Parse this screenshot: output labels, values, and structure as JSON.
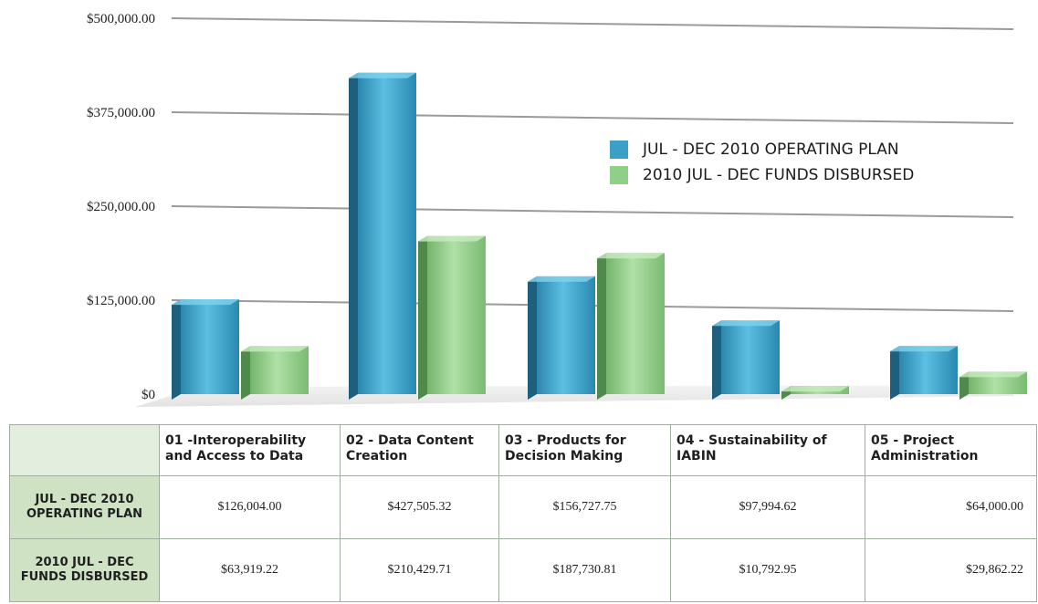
{
  "chart_data": {
    "type": "bar",
    "categories": [
      "01 -Interoperability and Access to Data",
      "02 - Data Content Creation",
      "03 - Products for Decision Making",
      "04 - Sustainability of IABIN",
      "05 - Project Administration"
    ],
    "series": [
      {
        "name": "JUL - DEC 2010 OPERATING PLAN",
        "row_label": "JUL - DEC 2010 OPERATING PLAN",
        "values": [
          126004.0,
          427505.32,
          156727.75,
          97994.62,
          64000.0
        ],
        "display_values": [
          "$126,004.00",
          "$427,505.32",
          "$156,727.75",
          "$97,994.62",
          "$64,000.00"
        ],
        "color": "#3aa0c6"
      },
      {
        "name": "2010 JUL - DEC FUNDS DISBURSED",
        "row_label": "2010 JUL - DEC FUNDS DISBURSED",
        "values": [
          63919.22,
          210429.71,
          187730.81,
          10792.95,
          29862.22
        ],
        "display_values": [
          "$63,919.22",
          "$210,429.71",
          "$187,730.81",
          "$10,792.95",
          "$29,862.22"
        ],
        "color": "#8fcf88"
      }
    ],
    "yticks": [
      0,
      125000,
      250000,
      375000,
      500000
    ],
    "ytick_labels": [
      "$0",
      "$125,000.00",
      "$250,000.00",
      "$375,000.00",
      "$500,000.00"
    ],
    "ylim": [
      0,
      500000
    ],
    "grid": true,
    "legend_position": "top-right",
    "title": "",
    "xlabel": "",
    "ylabel": ""
  }
}
